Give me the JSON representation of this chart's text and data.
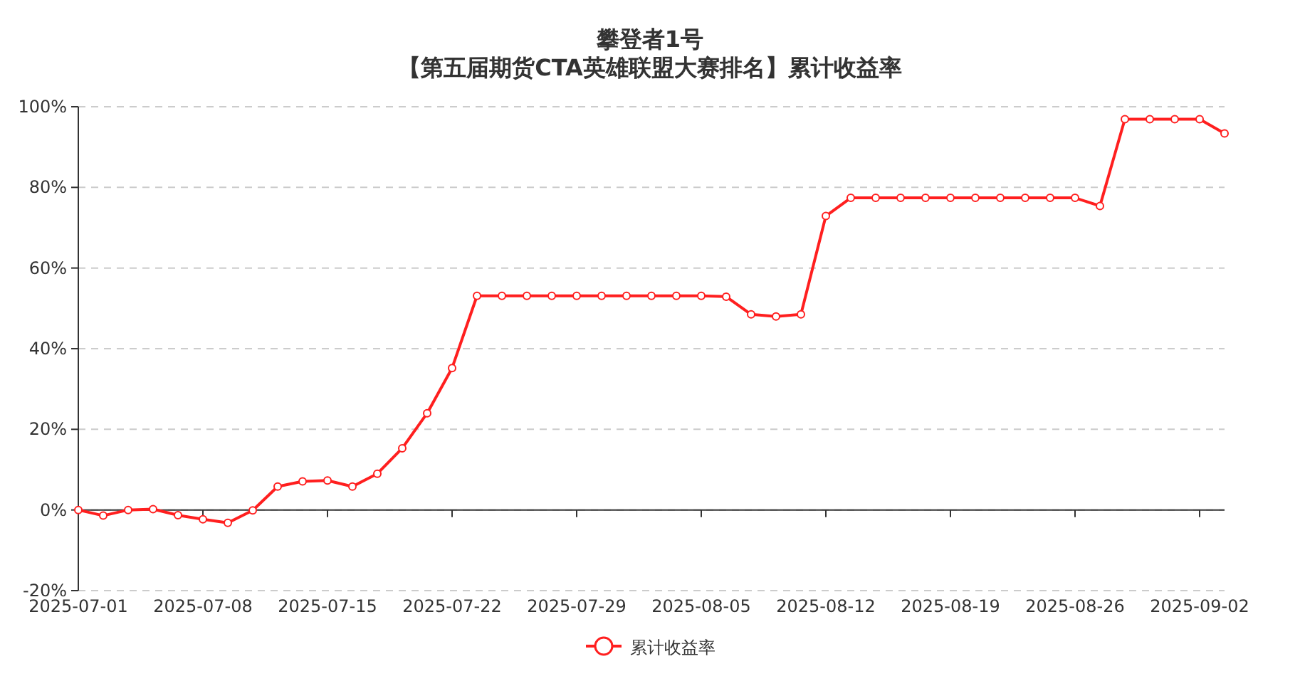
{
  "chart_data": {
    "type": "line",
    "title": "攀登者1号",
    "subtitle": "【第五届期货CTA英雄联盟大赛排名】累计收益率",
    "categories": [
      "2025-07-01",
      null,
      null,
      null,
      null,
      "2025-07-08",
      null,
      null,
      null,
      null,
      "2025-07-15",
      null,
      null,
      null,
      null,
      "2025-07-22",
      null,
      null,
      null,
      null,
      "2025-07-29",
      null,
      null,
      null,
      null,
      "2025-08-05",
      null,
      null,
      null,
      null,
      "2025-08-12",
      null,
      null,
      null,
      null,
      "2025-08-19",
      null,
      null,
      null,
      null,
      "2025-08-26",
      null,
      null,
      null,
      null,
      "2025-09-02",
      null
    ],
    "series": [
      {
        "name": "累计收益率",
        "color": "#ff1f1f",
        "values": [
          0,
          -1.4,
          0,
          0.2,
          -1.3,
          -2.3,
          -3.2,
          -0.1,
          5.8,
          7.1,
          7.3,
          5.8,
          9.0,
          15.3,
          24.0,
          35.2,
          53.1,
          53.1,
          53.1,
          53.1,
          53.1,
          53.1,
          53.1,
          53.1,
          53.1,
          53.1,
          52.9,
          48.5,
          48.0,
          48.5,
          72.9,
          77.4,
          77.4,
          77.4,
          77.4,
          77.4,
          77.4,
          77.4,
          77.4,
          77.4,
          77.4,
          75.4,
          96.9,
          96.9,
          96.9,
          96.9,
          93.4
        ]
      }
    ],
    "ylim": [
      -20,
      100
    ],
    "yticks": [
      {
        "value": -20,
        "label": "-20%"
      },
      {
        "value": 0,
        "label": "0%"
      },
      {
        "value": 20,
        "label": "20%"
      },
      {
        "value": 40,
        "label": "40%"
      },
      {
        "value": 60,
        "label": "60%"
      },
      {
        "value": 80,
        "label": "80%"
      },
      {
        "value": 100,
        "label": "100%"
      }
    ],
    "grid": "y",
    "legend": "bottom",
    "marker": "circle",
    "line_style": "solid"
  }
}
